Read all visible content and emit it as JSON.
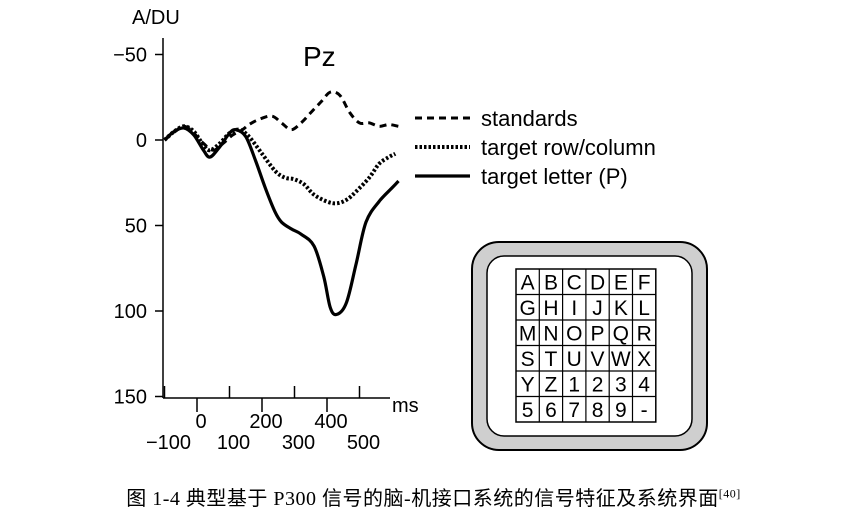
{
  "chart_data": {
    "type": "line",
    "title": "Pz",
    "ylabel": "A/DU",
    "xlabel": "ms",
    "x_ticks_row1": [
      0,
      200,
      400
    ],
    "x_ticks_row2": [
      -100,
      100,
      300,
      500
    ],
    "y_ticks": [
      -50,
      0,
      50,
      100,
      150
    ],
    "xlim": [
      -100,
      600
    ],
    "ylim": [
      -65,
      150
    ],
    "y_inverted": true,
    "legend_position": "right",
    "series": [
      {
        "name": "standards",
        "style": "dashed",
        "x": [
          -100,
          -60,
          -40,
          -20,
          0,
          20,
          50,
          80,
          110,
          140,
          160,
          190,
          230,
          260,
          290,
          320,
          350,
          380,
          410,
          440,
          470,
          500,
          530,
          560,
          590,
          620
        ],
        "y": [
          0,
          -6,
          -8,
          -6,
          -2,
          2,
          6,
          2,
          -3,
          -6,
          -9,
          -12,
          -14,
          -10,
          -6,
          -10,
          -16,
          -22,
          -28,
          -26,
          -16,
          -10,
          -10,
          -8,
          -9,
          -8
        ]
      },
      {
        "name": "target row/column",
        "style": "dotted",
        "x": [
          -100,
          -70,
          -40,
          -10,
          20,
          40,
          70,
          100,
          130,
          160,
          200,
          240,
          270,
          300,
          330,
          360,
          400,
          430,
          460,
          490,
          530,
          560,
          590,
          610
        ],
        "y": [
          0,
          -5,
          -8,
          -5,
          3,
          6,
          2,
          -4,
          -6,
          -2,
          8,
          18,
          22,
          23,
          26,
          32,
          36,
          37,
          35,
          30,
          22,
          14,
          10,
          8
        ]
      },
      {
        "name": "target letter (P)",
        "style": "solid",
        "x": [
          -100,
          -70,
          -40,
          -10,
          20,
          40,
          70,
          100,
          120,
          150,
          180,
          210,
          240,
          260,
          290,
          320,
          360,
          390,
          410,
          430,
          460,
          490,
          520,
          560,
          600,
          620
        ],
        "y": [
          0,
          -5,
          -7,
          -3,
          6,
          10,
          4,
          -4,
          -6,
          -2,
          12,
          28,
          42,
          48,
          52,
          55,
          62,
          80,
          98,
          102,
          95,
          72,
          48,
          36,
          28,
          24
        ]
      }
    ]
  },
  "speller": {
    "rows": [
      [
        "A",
        "B",
        "C",
        "D",
        "E",
        "F"
      ],
      [
        "G",
        "H",
        "I",
        "J",
        "K",
        "L"
      ],
      [
        "M",
        "N",
        "O",
        "P",
        "Q",
        "R"
      ],
      [
        "S",
        "T",
        "U",
        "V",
        "W",
        "X"
      ],
      [
        "Y",
        "Z",
        "1",
        "2",
        "3",
        "4"
      ],
      [
        "5",
        "6",
        "7",
        "8",
        "9",
        "-"
      ]
    ]
  },
  "caption": "图  1-4  典型基于 P300 信号的脑-机接口系统的信号特征及系统界面",
  "caption_ref": "[40]"
}
